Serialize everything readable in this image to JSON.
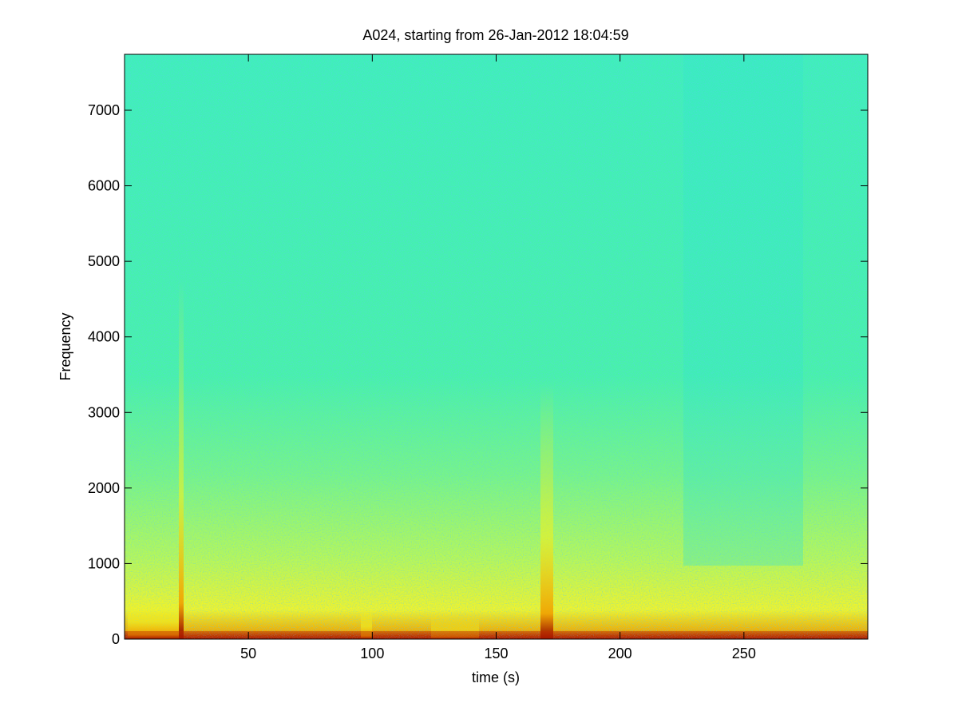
{
  "chart_data": {
    "type": "spectrogram",
    "title": "A024, starting from 26-Jan-2012 18:04:59",
    "xlabel": "time (s)",
    "ylabel": "Frequency",
    "xlim": [
      0,
      300
    ],
    "xticks": [
      50,
      100,
      150,
      200,
      250
    ],
    "ylim": [
      0,
      7740
    ],
    "yticks": [
      0,
      1000,
      2000,
      3000,
      4000,
      5000,
      6000,
      7000
    ]
  }
}
